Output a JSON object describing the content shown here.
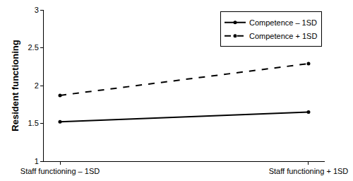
{
  "chart_data": {
    "type": "line",
    "categories": [
      "Staff functioning – 1SD",
      "Staff functioning + 1SD"
    ],
    "y_label": "Resident functioning",
    "ylim": [
      1,
      3
    ],
    "yticks": [
      1,
      1.5,
      2,
      2.5,
      3
    ],
    "grid": false,
    "legend": "top-right",
    "series": [
      {
        "name": "Competence – 1SD",
        "color": "#000000",
        "line_style": "solid",
        "marker": "circle",
        "values": [
          1.52,
          1.65
        ]
      },
      {
        "name": "Competence + 1SD",
        "color": "#000000",
        "line_style": "dash",
        "marker": "circle",
        "values": [
          1.87,
          2.29
        ]
      }
    ]
  }
}
